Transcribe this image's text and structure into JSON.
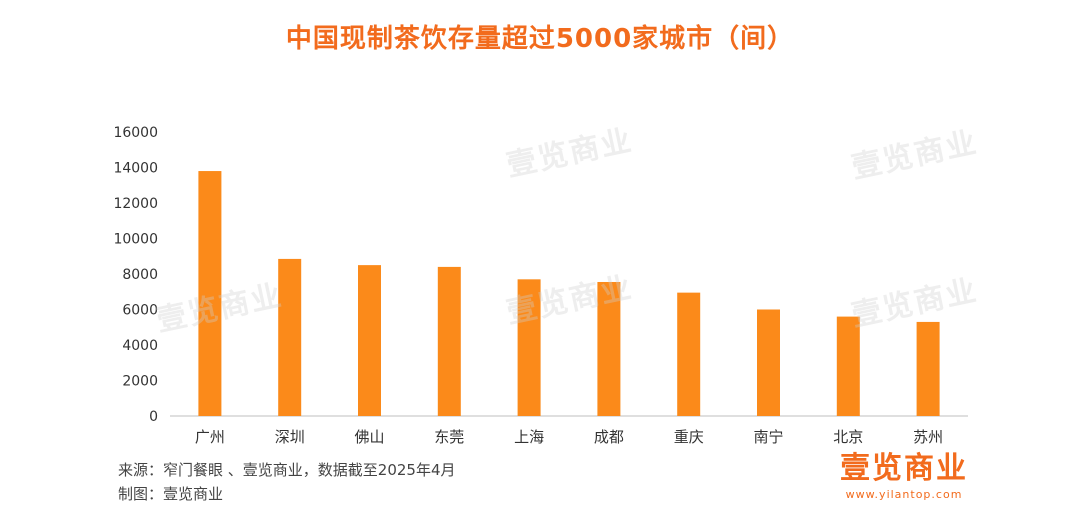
{
  "title": "中国现制茶饮存量超过5000家城市（间）",
  "watermark_text": "壹览商业",
  "source": {
    "line1": "来源：窄门餐眼 、壹览商业，数据截至2025年4月",
    "line2": "制图：壹览商业"
  },
  "brand": {
    "name": "壹览商业",
    "url": "www.yilantop.com"
  },
  "colors": {
    "title": "#f26b1d",
    "bar": "#fb8a1a",
    "brand": "#f26b1d"
  },
  "chart_data": {
    "type": "bar",
    "title": "中国现制茶饮存量超过5000家城市（间）",
    "xlabel": "",
    "ylabel": "",
    "categories": [
      "广州",
      "深圳",
      "佛山",
      "东莞",
      "上海",
      "成都",
      "重庆",
      "南宁",
      "北京",
      "苏州"
    ],
    "values": [
      13800,
      8850,
      8500,
      8400,
      7700,
      7550,
      6950,
      6000,
      5600,
      5300
    ],
    "ylim": [
      0,
      16000
    ],
    "yticks": [
      0,
      2000,
      4000,
      6000,
      8000,
      10000,
      12000,
      14000,
      16000
    ],
    "grid": false,
    "legend": "none"
  }
}
